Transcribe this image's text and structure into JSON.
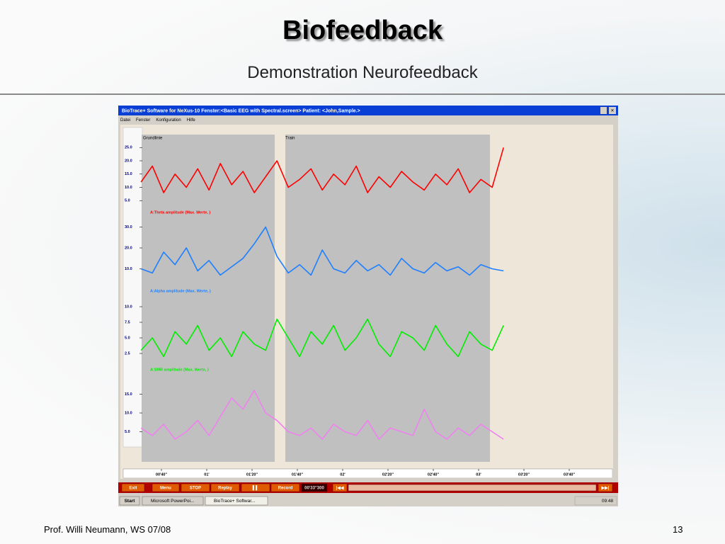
{
  "header": {
    "title": "Biofeedback",
    "subtitle": "Demonstration Neurofeedback"
  },
  "window": {
    "title": "BioTrace+ Software for NeXus-10    Fenster:<Basic EEG with Spectral.screen>  Patient: <John,Sample.>",
    "menu": [
      "Datei",
      "Fenster",
      "Konfiguration",
      "Hilfe"
    ],
    "regions": [
      "Grundlinie",
      "Train"
    ],
    "xlim": [
      31.25,
      239.06
    ],
    "xticks": [
      {
        "value": 40,
        "label": "00'40''"
      },
      {
        "value": 60,
        "label": "01'"
      },
      {
        "value": 80,
        "label": "01'20''"
      },
      {
        "value": 100,
        "label": "01'40''"
      },
      {
        "value": 120,
        "label": "02'"
      },
      {
        "value": 140,
        "label": "02'20''"
      },
      {
        "value": 160,
        "label": "02'40''"
      },
      {
        "value": 180,
        "label": "03'"
      },
      {
        "value": 200,
        "label": "03'20''"
      },
      {
        "value": 220,
        "label": "03'40''"
      }
    ],
    "x": [
      31,
      36,
      41,
      46,
      51,
      56,
      61,
      66,
      71,
      76,
      81,
      86,
      91,
      96,
      101,
      106,
      111,
      116,
      121,
      126,
      131,
      136,
      141,
      146,
      151,
      156,
      161,
      166,
      171,
      176,
      181,
      186,
      191
    ],
    "panels": [
      {
        "label": "A:Theta amplitude (Max. Werte, )",
        "color": "#ff0000",
        "ylim": [
          0,
          30
        ],
        "yticks": [
          {
            "value": 25,
            "label": "25.0"
          },
          {
            "value": 20,
            "label": "20.0"
          },
          {
            "value": 15,
            "label": "15.0"
          },
          {
            "value": 10,
            "label": "10.0"
          },
          {
            "value": 5,
            "label": "5.0"
          }
        ],
        "values": [
          12,
          18,
          8,
          15,
          10,
          17,
          9,
          19,
          11,
          16,
          8,
          14,
          20,
          10,
          13,
          17,
          9,
          15,
          11,
          18,
          8,
          14,
          10,
          16,
          12,
          9,
          15,
          11,
          17,
          8,
          13,
          10,
          25
        ]
      },
      {
        "label": "A:Alpha amplitude (Max. Werte, )",
        "color": "#1e7fff",
        "ylim": [
          0,
          35
        ],
        "yticks": [
          {
            "value": 30,
            "label": "30.0"
          },
          {
            "value": 20,
            "label": "20.0"
          },
          {
            "value": 10,
            "label": "10.0"
          }
        ],
        "values": [
          10,
          8,
          18,
          12,
          20,
          9,
          14,
          7,
          11,
          15,
          22,
          30,
          16,
          8,
          12,
          7,
          19,
          10,
          8,
          14,
          9,
          12,
          7,
          15,
          10,
          8,
          13,
          9,
          11,
          7,
          12,
          10,
          9
        ]
      },
      {
        "label": "A:SMR amplitude (Max. Werte, )",
        "color": "#00ee00",
        "ylim": [
          0,
          12.5
        ],
        "yticks": [
          {
            "value": 10,
            "label": "10.0"
          },
          7.5,
          {
            "value": 5,
            "label": "5.0"
          },
          2.5
        ],
        "values": [
          3,
          5,
          2,
          6,
          4,
          7,
          3,
          5,
          2,
          6,
          4,
          3,
          8,
          5,
          2,
          6,
          4,
          7,
          3,
          5,
          8,
          4,
          2,
          6,
          5,
          3,
          7,
          4,
          2,
          6,
          4,
          3,
          7
        ]
      },
      {
        "color": "#ee82ee",
        "ylim": [
          0,
          20
        ],
        "yticks": [
          {
            "value": 15,
            "label": "15.0"
          },
          {
            "value": 10,
            "label": "10.0"
          },
          {
            "value": 5,
            "label": "5.0"
          }
        ],
        "values": [
          6,
          4,
          7,
          3,
          5,
          8,
          4,
          9,
          14,
          11,
          16,
          10,
          8,
          5,
          4,
          6,
          3,
          7,
          5,
          4,
          8,
          3,
          6,
          5,
          4,
          11,
          5,
          3,
          6,
          4,
          7,
          5,
          3
        ]
      }
    ],
    "toolbar": [
      "Exit",
      "Menu",
      "STOP",
      "Replay",
      "▌▌",
      "Record",
      "00'33''300",
      "|◀◀",
      "▶▶|"
    ],
    "taskbar": {
      "start": "Start",
      "tasks": [
        "Microsoft PowerPoi...",
        "BioTrace+ Softwar..."
      ],
      "clock": "09:48"
    }
  },
  "footer": {
    "author": "Prof. Willi Neumann,  WS 07/08",
    "page": "13"
  }
}
